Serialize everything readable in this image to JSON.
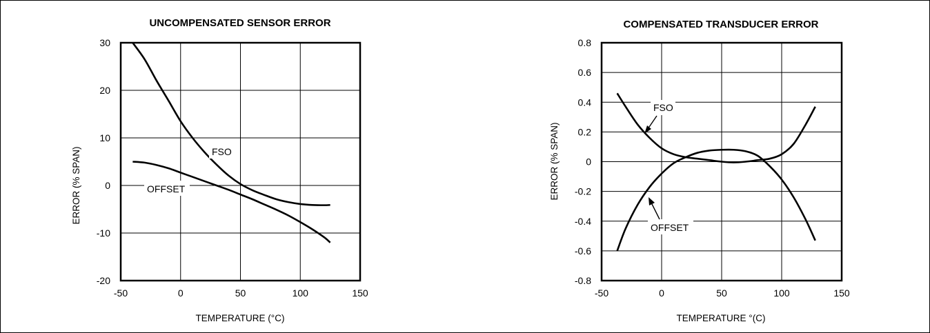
{
  "chart_data": [
    {
      "type": "line",
      "title": "UNCOMPENSATED SENSOR ERROR",
      "xlabel": "TEMPERATURE (°C)",
      "ylabel": "ERROR (% SPAN)",
      "xlim": [
        -50,
        150
      ],
      "ylim": [
        -20,
        30
      ],
      "xticks": [
        -50,
        0,
        50,
        100,
        150
      ],
      "yticks": [
        -20,
        -10,
        0,
        10,
        20,
        30
      ],
      "grid": true,
      "series": [
        {
          "name": "FSO",
          "x": [
            -40,
            -30,
            -20,
            -10,
            0,
            10,
            20,
            30,
            40,
            50,
            60,
            70,
            80,
            90,
            100,
            110,
            120,
            125
          ],
          "values": [
            30,
            26.5,
            22,
            17.8,
            13.5,
            10,
            7,
            4.4,
            2.1,
            0.3,
            -1,
            -2,
            -2.9,
            -3.5,
            -3.9,
            -4.1,
            -4.15,
            -4.1
          ]
        },
        {
          "name": "OFFSET",
          "x": [
            -40,
            -30,
            -20,
            -10,
            0,
            10,
            20,
            30,
            40,
            50,
            60,
            70,
            80,
            90,
            100,
            110,
            120,
            125
          ],
          "values": [
            5,
            4.8,
            4.3,
            3.6,
            2.7,
            1.8,
            0.9,
            0,
            -0.9,
            -1.9,
            -2.9,
            -4,
            -5.1,
            -6.3,
            -7.7,
            -9.2,
            -10.9,
            -12
          ]
        }
      ],
      "annotations": [
        {
          "text": "FSO"
        },
        {
          "text": "OFFSET"
        }
      ]
    },
    {
      "type": "line",
      "title": "COMPENSATED TRANSDUCER ERROR",
      "xlabel": "TEMPERATURE °(C)",
      "ylabel": "ERROR (% SPAN)",
      "xlim": [
        -50,
        150
      ],
      "ylim": [
        -0.8,
        0.8
      ],
      "xticks": [
        -50,
        0,
        50,
        100,
        150
      ],
      "yticks": [
        "-0.8",
        "-0.6",
        "-0.4",
        "-0.2",
        "0",
        "0.2",
        "0.4",
        "0.6",
        "0.8"
      ],
      "grid": true,
      "series": [
        {
          "name": "FSO",
          "x": [
            -37,
            -30,
            -20,
            -10,
            0,
            10,
            20,
            30,
            40,
            50,
            60,
            70,
            80,
            90,
            100,
            110,
            120,
            128
          ],
          "values": [
            0.46,
            0.37,
            0.25,
            0.16,
            0.09,
            0.05,
            0.03,
            0.02,
            0.01,
            0,
            -0.005,
            0,
            0.01,
            0.02,
            0.05,
            0.12,
            0.25,
            0.37
          ]
        },
        {
          "name": "OFFSET",
          "x": [
            -37,
            -30,
            -20,
            -10,
            0,
            10,
            20,
            30,
            40,
            50,
            60,
            70,
            80,
            90,
            100,
            110,
            120,
            128
          ],
          "values": [
            -0.6,
            -0.45,
            -0.29,
            -0.17,
            -0.08,
            -0.01,
            0.03,
            0.06,
            0.075,
            0.08,
            0.08,
            0.07,
            0.04,
            -0.03,
            -0.12,
            -0.24,
            -0.39,
            -0.53
          ]
        }
      ],
      "annotations": [
        {
          "text": "FSO"
        },
        {
          "text": "OFFSET"
        }
      ]
    }
  ]
}
